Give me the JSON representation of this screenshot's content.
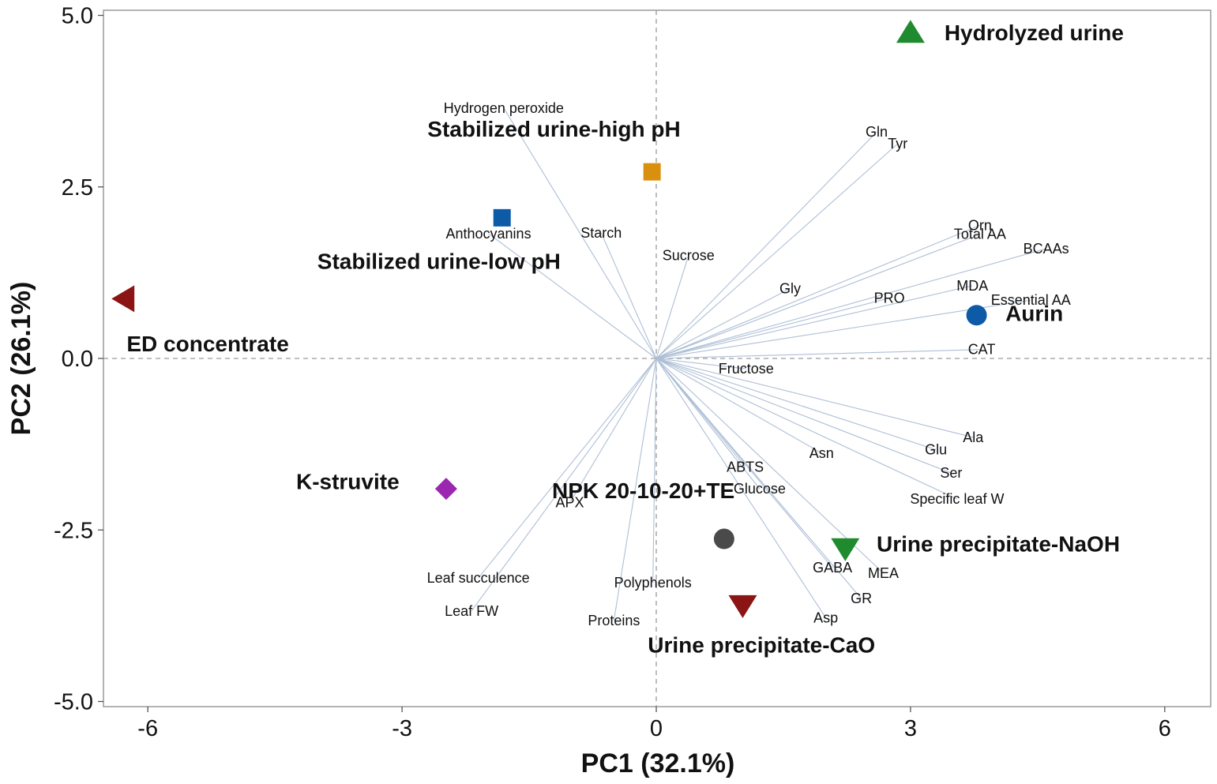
{
  "chart_data": {
    "type": "scatter",
    "subtype": "pca_biplot",
    "xlabel": "PC1 (32.1%)",
    "ylabel": "PC2 (26.1%)",
    "xlim": [
      -6.6,
      6.6
    ],
    "ylim": [
      -5.1,
      5.05
    ],
    "xticks": [
      {
        "value": -6,
        "label": "-6"
      },
      {
        "value": -3,
        "label": "-3"
      },
      {
        "value": 0,
        "label": "0"
      },
      {
        "value": 3,
        "label": "3"
      },
      {
        "value": 6,
        "label": "6"
      }
    ],
    "yticks": [
      {
        "value": 5,
        "label": "5.0"
      },
      {
        "value": 2.5,
        "label": "2.5"
      },
      {
        "value": 0,
        "label": "0.0"
      },
      {
        "value": -2.5,
        "label": "-2.5"
      },
      {
        "value": -5,
        "label": "-5.0"
      }
    ],
    "reference_lines": {
      "x": 0,
      "y": 0
    },
    "groups": [
      {
        "label": "Hydrolyzed urine",
        "x": 3.0,
        "y": 4.75,
        "marker": "triangle-up",
        "color": "#1f8a2e",
        "label_x": 3.4,
        "label_y": 4.75
      },
      {
        "label": "Stabilized urine-high pH",
        "x": -0.05,
        "y": 2.72,
        "marker": "square",
        "color": "#d9900f",
        "label_x": -2.7,
        "label_y": 3.35
      },
      {
        "label": "Stabilized urine-low pH",
        "x": -1.82,
        "y": 2.05,
        "marker": "square",
        "color": "#0d5aa7",
        "label_x": -4.0,
        "label_y": 1.42
      },
      {
        "label": "ED concentrate",
        "x": -6.28,
        "y": 0.87,
        "marker": "triangle-left",
        "color": "#8b1515",
        "label_x": -6.25,
        "label_y": 0.22
      },
      {
        "label": "Aurin",
        "x": 3.78,
        "y": 0.63,
        "marker": "circle",
        "color": "#0d5aa7",
        "label_x": 4.12,
        "label_y": 0.66
      },
      {
        "label": "K-struvite",
        "x": -2.48,
        "y": -1.9,
        "marker": "diamond",
        "color": "#9b27b0",
        "label_x": -4.25,
        "label_y": -1.79
      },
      {
        "label": "NPK 20-10-20+TE",
        "x": 0.8,
        "y": -2.63,
        "marker": "circle",
        "color": "#4a4a4a",
        "label_x": -1.23,
        "label_y": -1.92
      },
      {
        "label": "Urine precipitate-NaOH",
        "x": 2.23,
        "y": -2.77,
        "marker": "triangle-down",
        "color": "#1f8a2e",
        "label_x": 2.6,
        "label_y": -2.7
      },
      {
        "label": "Urine precipitate-CaO",
        "x": 1.02,
        "y": -3.6,
        "marker": "triangle-down",
        "color": "#8b1515",
        "label_x": -0.1,
        "label_y": -4.17
      }
    ],
    "loadings": [
      {
        "label": "Hydrogen peroxide",
        "x": -1.8,
        "y": 3.65
      },
      {
        "label": "Starch",
        "x": -0.65,
        "y": 1.83
      },
      {
        "label": "Anthocyanins",
        "x": -1.98,
        "y": 1.82
      },
      {
        "label": "Sucrose",
        "x": 0.38,
        "y": 1.5
      },
      {
        "label": "Gln",
        "x": 2.6,
        "y": 3.3
      },
      {
        "label": "Tyr",
        "x": 2.85,
        "y": 3.13
      },
      {
        "label": "Orn",
        "x": 3.82,
        "y": 1.94
      },
      {
        "label": "Total AA",
        "x": 3.82,
        "y": 1.81
      },
      {
        "label": "BCAAs",
        "x": 4.6,
        "y": 1.6
      },
      {
        "label": "Gly",
        "x": 1.58,
        "y": 1.02
      },
      {
        "label": "PRO",
        "x": 2.75,
        "y": 0.88
      },
      {
        "label": "MDA",
        "x": 3.73,
        "y": 1.06
      },
      {
        "label": "Essential AA",
        "x": 4.42,
        "y": 0.85
      },
      {
        "label": "CAT",
        "x": 3.84,
        "y": 0.13
      },
      {
        "label": "Fructose",
        "x": 1.06,
        "y": -0.15
      },
      {
        "label": "Ala",
        "x": 3.74,
        "y": -1.15
      },
      {
        "label": "Asn",
        "x": 1.95,
        "y": -1.38
      },
      {
        "label": "Glu",
        "x": 3.3,
        "y": -1.33
      },
      {
        "label": "Ser",
        "x": 3.48,
        "y": -1.67
      },
      {
        "label": "ABTS",
        "x": 1.05,
        "y": -1.58
      },
      {
        "label": "Glucose",
        "x": 1.22,
        "y": -1.9
      },
      {
        "label": "Specific leaf W",
        "x": 3.55,
        "y": -2.05
      },
      {
        "label": "APX",
        "x": -1.02,
        "y": -2.1
      },
      {
        "label": "GABA",
        "x": 2.08,
        "y": -3.05
      },
      {
        "label": "MEA",
        "x": 2.68,
        "y": -3.13
      },
      {
        "label": "GR",
        "x": 2.42,
        "y": -3.5
      },
      {
        "label": "Polyphenols",
        "x": -0.04,
        "y": -3.27
      },
      {
        "label": "Leaf succulence",
        "x": -2.1,
        "y": -3.2
      },
      {
        "label": "Asp",
        "x": 2.0,
        "y": -3.78
      },
      {
        "label": "Leaf FW",
        "x": -2.18,
        "y": -3.68
      },
      {
        "label": "Proteins",
        "x": -0.5,
        "y": -3.82
      }
    ]
  }
}
